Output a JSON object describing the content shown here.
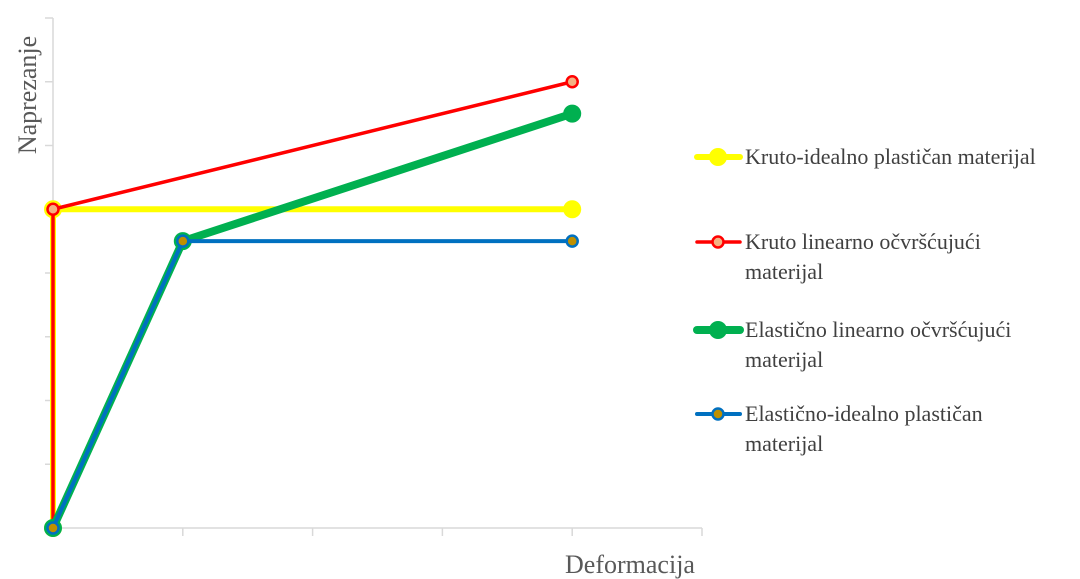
{
  "chart_data": {
    "type": "line",
    "title": "",
    "xlabel": "Deformacija",
    "ylabel": "Naprezanje",
    "xlim": [
      0,
      5
    ],
    "ylim": [
      0,
      8
    ],
    "x_major_ticks": [
      0,
      1,
      2,
      3,
      4,
      5
    ],
    "y_major_ticks": [
      0,
      1,
      2,
      3,
      4,
      5,
      6,
      7,
      8
    ],
    "tick_labels_shown": false,
    "grid": false,
    "legend_position": "right",
    "series": [
      {
        "name": "Kruto-idealno plastičan materijal",
        "legend_lines": [
          "Kruto-idealno plastičan materijal"
        ],
        "color": "#ffff00",
        "points": [
          [
            0,
            0
          ],
          [
            0,
            5
          ],
          [
            4,
            5
          ]
        ]
      },
      {
        "name": "Kruto linearno očvršćujući materijal",
        "legend_lines": [
          "Kruto linearno očvršćujući",
          "materijal"
        ],
        "color": "#ff0000",
        "points": [
          [
            0,
            0
          ],
          [
            0,
            5
          ],
          [
            4,
            7
          ]
        ]
      },
      {
        "name": "Elastično linearno očvršćujući materijal",
        "legend_lines": [
          "Elastično linearno očvršćujući",
          "materijal"
        ],
        "color": "#00b050",
        "points": [
          [
            0,
            0
          ],
          [
            1,
            4.5
          ],
          [
            4,
            6.5
          ]
        ]
      },
      {
        "name": "Elastično-idealno plastičan materijal",
        "legend_lines": [
          "Elastično-idealno plastičan",
          "materijal"
        ],
        "color": "#0070c0",
        "points": [
          [
            0,
            0
          ],
          [
            1,
            4.5
          ],
          [
            4,
            4.5
          ]
        ]
      }
    ]
  }
}
